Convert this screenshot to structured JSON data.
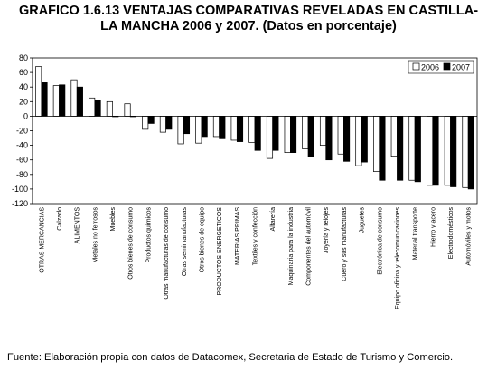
{
  "chart_data": {
    "type": "bar",
    "title": "GRAFICO 1.6.13 VENTAJAS COMPARATIVAS REVELADAS EN CASTILLA-\nLA MANCHA 2006 y 2007. (Datos en porcentaje)",
    "xlabel": "",
    "ylabel": "",
    "ylim": [
      -120,
      80
    ],
    "yticks": [
      80,
      60,
      40,
      20,
      0,
      -20,
      -40,
      -60,
      -80,
      -100,
      -120
    ],
    "grid": false,
    "legend_position": "top-right",
    "categories": [
      "OTRAS MERCANCIAS",
      "Calzado",
      "ALIMENTOS",
      "Metales no ferrosos",
      "Muebles",
      "Otros bienes de consumo",
      "Productos químicos",
      "Otras manufacturas de consumo",
      "Otras semimanufacturas",
      "Otros bienes de equipo",
      "PRODUCTOS ENERGETICOS",
      "MATERIAS PRIMAS",
      "Textiles y confección",
      "Alfarería",
      "Maquinaria para la industria",
      "Componentes del automóvil",
      "Joyería y relojes",
      "Cuero y sus manufacturas",
      "Juguetes",
      "Electrónica de consumo",
      "Equipo oficina y telecomunicaciones",
      "Material transporte",
      "Hierro y acero",
      "Electrodomésticos",
      "Automóviles y motos"
    ],
    "series": [
      {
        "name": "2006",
        "color": "#ffffff",
        "values": [
          68,
          42,
          50,
          25,
          20,
          17,
          -18,
          -22,
          -38,
          -37,
          -28,
          -33,
          -36,
          -58,
          -50,
          -45,
          -40,
          -52,
          -68,
          -76,
          -55,
          -88,
          -95,
          -95,
          -98
        ]
      },
      {
        "name": "2007",
        "color": "#000000",
        "values": [
          46,
          43,
          40,
          22,
          0,
          0,
          -10,
          -18,
          -24,
          -28,
          -31,
          -35,
          -47,
          -47,
          -50,
          -55,
          -60,
          -62,
          -63,
          -88,
          -88,
          -90,
          -95,
          -97,
          -100
        ]
      }
    ]
  },
  "source_note": "Fuente: Elaboración propia con datos de Datacomex, Secretaria de Estado de Turismo y Comercio."
}
